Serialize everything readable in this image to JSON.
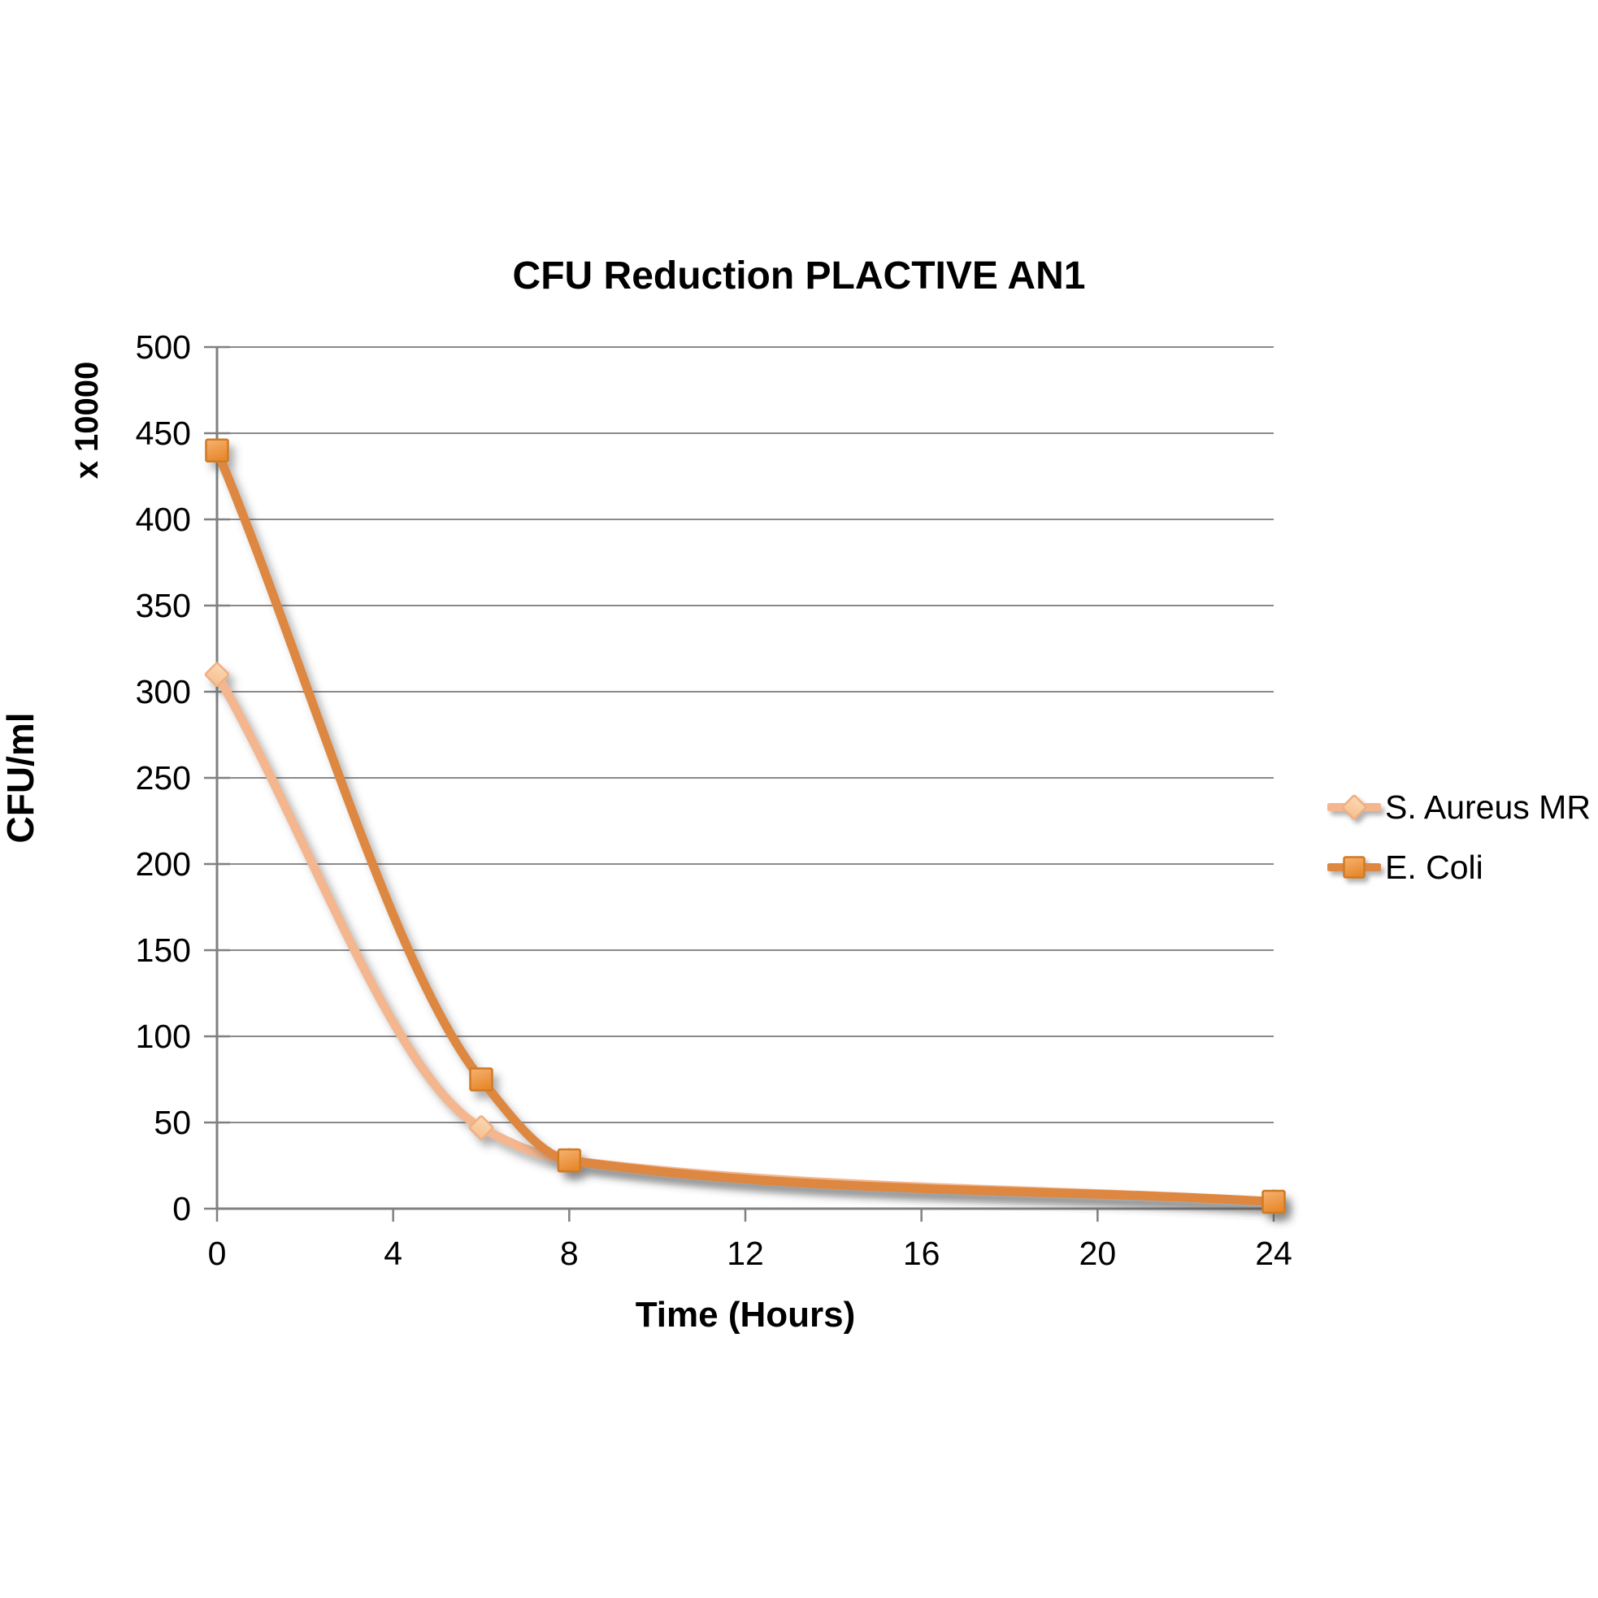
{
  "chart_data": {
    "type": "line",
    "title": "CFU Reduction PLACTIVE AN1",
    "xlabel": "Time (Hours)",
    "ylabel": "CFU/ml",
    "y_axis_multiplier": "x 10000",
    "x": [
      0,
      6,
      8,
      24
    ],
    "series": [
      {
        "name": "S. Aureus MR",
        "marker": "diamond",
        "line_color": "#F4B68E",
        "marker_fill_top": "#FBD8B4",
        "marker_fill_bottom": "#F7C395",
        "marker_stroke": "#F0AF80",
        "values": [
          310,
          47,
          28,
          4
        ]
      },
      {
        "name": "E. Coli",
        "marker": "square",
        "line_color": "#DD8740",
        "marker_fill_top": "#F7B273",
        "marker_fill_bottom": "#E78A2E",
        "marker_stroke": "#D07A24",
        "values": [
          440,
          75,
          28,
          4
        ]
      }
    ],
    "xlim": [
      0,
      24
    ],
    "ylim": [
      0,
      500
    ],
    "x_ticks": [
      0,
      4,
      8,
      12,
      16,
      20,
      24
    ],
    "y_ticks": [
      0,
      50,
      100,
      150,
      200,
      250,
      300,
      350,
      400,
      450,
      500
    ],
    "grid": "horizontal-only",
    "grid_color": "#8A8A8A",
    "axis_color": "#808080",
    "text_color": "#000000",
    "legend_position": "right",
    "smoothed_lines": true
  }
}
